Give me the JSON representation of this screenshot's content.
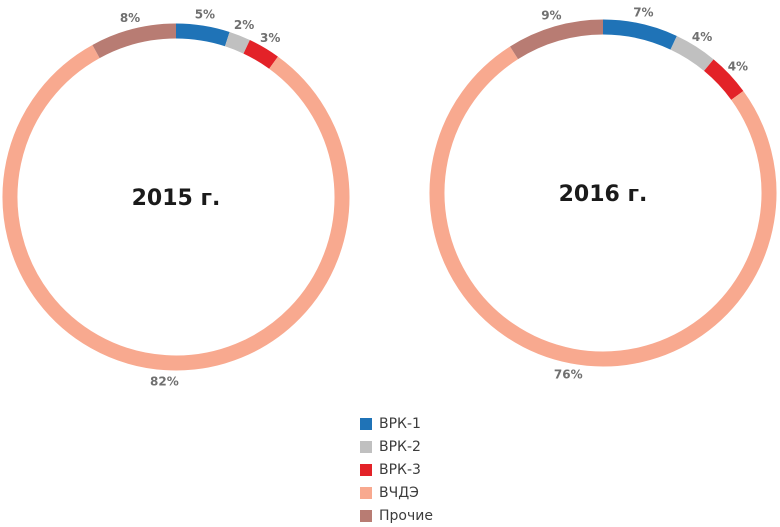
{
  "chart_data": [
    {
      "type": "pie",
      "center_label": "2015 г.",
      "categories": [
        "ВРК-1",
        "ВРК-2",
        "ВРК-3",
        "ВЧДЭ",
        "Прочие"
      ],
      "values": [
        5,
        2,
        3,
        82,
        8
      ],
      "value_labels": [
        "5%",
        "2%",
        "3%",
        "82%",
        "8%"
      ],
      "style": "donut"
    },
    {
      "type": "pie",
      "center_label": "2016 г.",
      "categories": [
        "ВРК-1",
        "ВРК-2",
        "ВРК-3",
        "ВЧДЭ",
        "Прочие"
      ],
      "values": [
        7,
        4,
        4,
        76,
        9
      ],
      "value_labels": [
        "7%",
        "4%",
        "4%",
        "76%",
        "9%"
      ],
      "style": "donut"
    }
  ],
  "legend": {
    "placement": "bottom-center",
    "items": [
      {
        "label": "ВРК-1",
        "color": "#1f73b7"
      },
      {
        "label": "ВРК-2",
        "color": "#c0c0c0"
      },
      {
        "label": "ВРК-3",
        "color": "#e32228"
      },
      {
        "label": "ВЧДЭ",
        "color": "#f8a98f"
      },
      {
        "label": "Прочие",
        "color": "#b87c73"
      }
    ]
  }
}
